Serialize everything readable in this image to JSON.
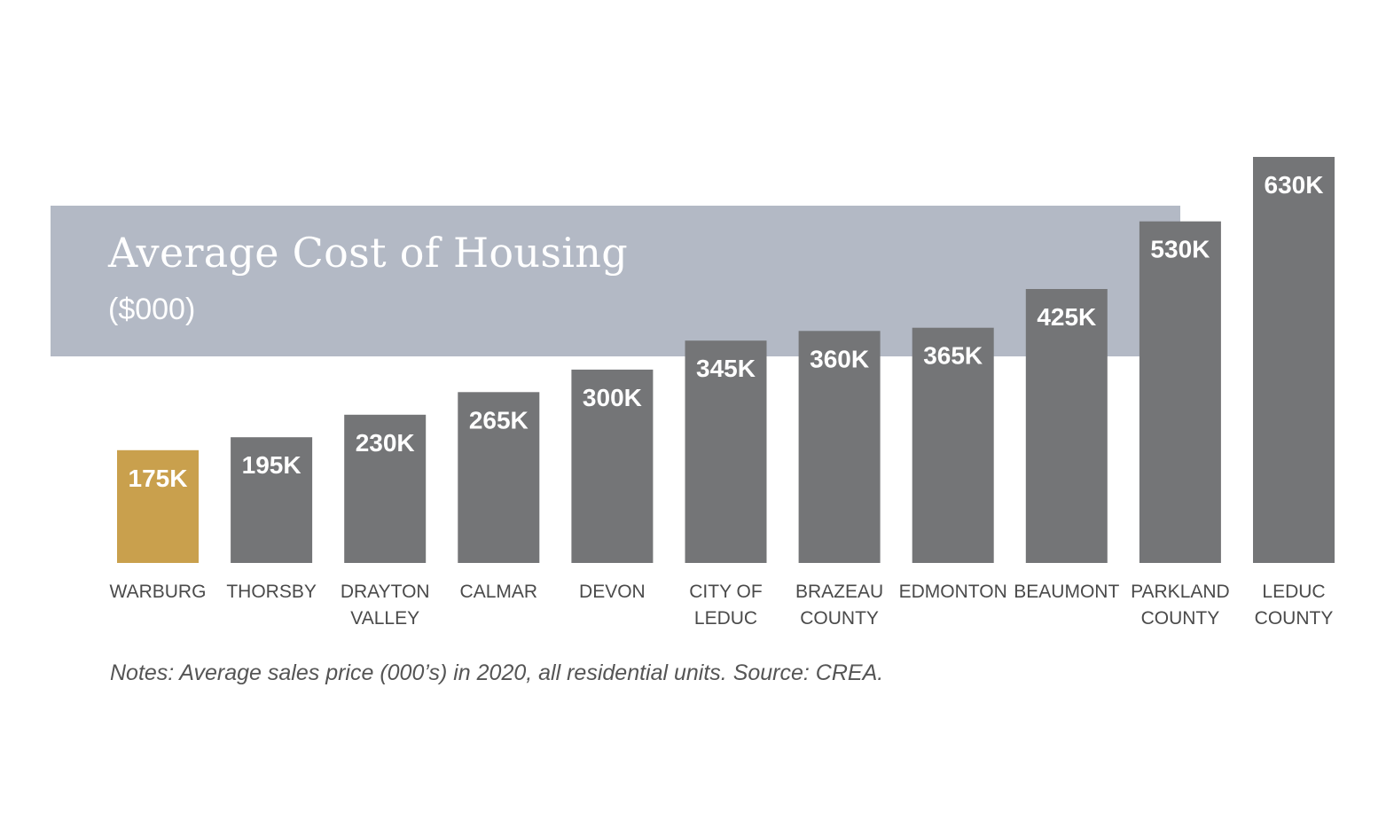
{
  "colors": {
    "band": "#b3b9c5",
    "bar": "#747577",
    "highlight": "#c9a04d",
    "label_text": "#4a4a4a",
    "note_text": "#555555"
  },
  "chart_data": {
    "type": "bar",
    "title": "Average Cost of Housing",
    "subtitle": "($000)",
    "categories": [
      [
        "WARBURG"
      ],
      [
        "THORSBY"
      ],
      [
        "DRAYTON",
        "VALLEY"
      ],
      [
        "CALMAR"
      ],
      [
        "DEVON"
      ],
      [
        "CITY OF",
        "LEDUC"
      ],
      [
        "BRAZEAU",
        "COUNTY"
      ],
      [
        "EDMONTON"
      ],
      [
        "BEAUMONT"
      ],
      [
        "PARKLAND",
        "COUNTY"
      ],
      [
        "LEDUC",
        "COUNTY"
      ]
    ],
    "values": [
      175,
      195,
      230,
      265,
      300,
      345,
      360,
      365,
      425,
      530,
      630
    ],
    "value_labels": [
      "175K",
      "195K",
      "230K",
      "265K",
      "300K",
      "345K",
      "360K",
      "365K",
      "425K",
      "530K",
      "630K"
    ],
    "highlight_index": 0,
    "ylim": [
      0,
      630
    ],
    "grid": false,
    "note": "Notes: Average sales price (000’s) in 2020, all residential units. Source: CREA."
  }
}
